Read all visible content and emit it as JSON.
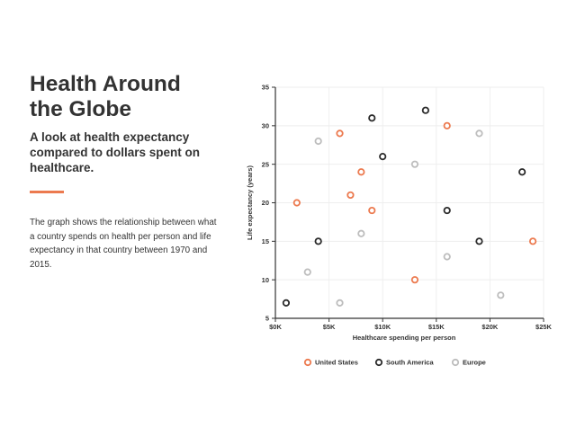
{
  "panel": {
    "title": "Health Around the Globe",
    "subtitle": "A look at health expectancy compared to dollars spent on healthcare.",
    "description": "The graph shows the relationship between what a country spends on health per person and life expectancy in that country between 1970 and 2015."
  },
  "colors": {
    "accent": "#ec7a4f",
    "united_states": "#ec7a4f",
    "south_america": "#2b2b2b",
    "europe": "#bdbdbd",
    "grid": "#eeeeee",
    "axis": "#333333"
  },
  "chart_data": {
    "type": "scatter",
    "xlabel": "Healthcare spending per person",
    "ylabel": "Life expectancy (years)",
    "xlim": [
      0,
      25000
    ],
    "ylim": [
      5,
      35
    ],
    "x_ticks": [
      0,
      5000,
      10000,
      15000,
      20000,
      25000
    ],
    "x_tick_labels": [
      "$0K",
      "$5K",
      "$10K",
      "$15K",
      "$20K",
      "$25K"
    ],
    "y_ticks": [
      5,
      10,
      15,
      20,
      25,
      30,
      35
    ],
    "y_tick_labels": [
      "5",
      "10",
      "15",
      "20",
      "25",
      "30",
      "35"
    ],
    "grid": true,
    "legend_position": "bottom",
    "series": [
      {
        "name": "United States",
        "color": "#ec7a4f",
        "points": [
          [
            2000,
            20
          ],
          [
            6000,
            29
          ],
          [
            7000,
            21
          ],
          [
            8000,
            24
          ],
          [
            9000,
            19
          ],
          [
            13000,
            10
          ],
          [
            16000,
            30
          ],
          [
            24000,
            15
          ]
        ]
      },
      {
        "name": "South America",
        "color": "#2b2b2b",
        "points": [
          [
            1000,
            7
          ],
          [
            4000,
            15
          ],
          [
            9000,
            31
          ],
          [
            10000,
            26
          ],
          [
            14000,
            32
          ],
          [
            16000,
            19
          ],
          [
            19000,
            15
          ],
          [
            23000,
            24
          ]
        ]
      },
      {
        "name": "Europe",
        "color": "#bdbdbd",
        "points": [
          [
            3000,
            11
          ],
          [
            4000,
            28
          ],
          [
            6000,
            7
          ],
          [
            8000,
            16
          ],
          [
            13000,
            25
          ],
          [
            16000,
            13
          ],
          [
            19000,
            29
          ],
          [
            21000,
            8
          ]
        ]
      }
    ]
  }
}
